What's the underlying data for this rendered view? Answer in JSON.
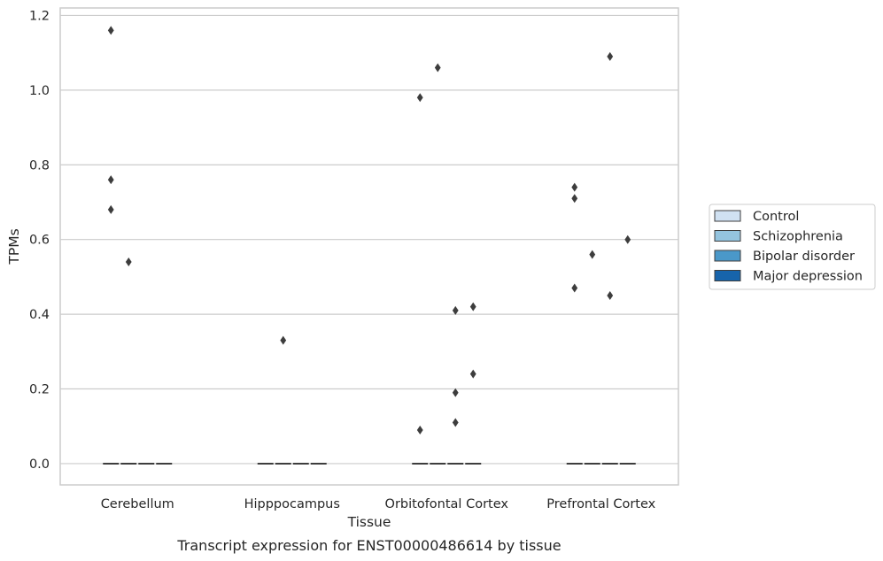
{
  "caption": "Transcript expression for ENST00000486614 by tissue",
  "chart_data": {
    "type": "box",
    "xlabel": "Tissue",
    "ylabel": "TPMs",
    "ylim": [
      -0.057,
      1.22
    ],
    "yticks": [
      0.0,
      0.2,
      0.4,
      0.6,
      0.8,
      1.0,
      1.2
    ],
    "ytick_labels": [
      "0.0",
      "0.2",
      "0.4",
      "0.6",
      "0.8",
      "1.0",
      "1.2"
    ],
    "grid": "horizontal",
    "legend_position": "right",
    "categories": [
      "Cerebellum",
      "Hipppocampus",
      "Orbitofontal Cortex",
      "Prefrontal Cortex"
    ],
    "series": [
      {
        "name": "Control",
        "color": "#d0e1f2",
        "outliers": [
          [
            1.16,
            0.76,
            0.68
          ],
          [],
          [
            0.98,
            0.09
          ],
          [
            0.74,
            0.71,
            0.47
          ]
        ]
      },
      {
        "name": "Schizophrenia",
        "color": "#94c4df",
        "outliers": [
          [
            0.54
          ],
          [
            0.33
          ],
          [
            1.06
          ],
          [
            0.56
          ]
        ]
      },
      {
        "name": "Bipolar disorder",
        "color": "#4a98c9",
        "outliers": [
          [],
          [],
          [
            0.41,
            0.19,
            0.11
          ],
          [
            1.09,
            0.45
          ]
        ]
      },
      {
        "name": "Major depression",
        "color": "#1764ab",
        "outliers": [
          [],
          [],
          [
            0.42,
            0.24
          ],
          [
            0.6
          ]
        ]
      }
    ],
    "median": 0.0
  }
}
